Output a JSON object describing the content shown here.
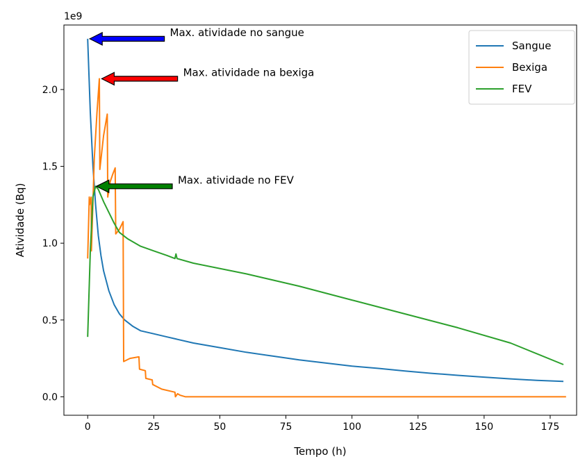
{
  "chart_data": {
    "type": "line",
    "offset_text": "1e9",
    "xlabel": "Tempo (h)",
    "ylabel": "Atividade (Bq)",
    "xlim": [
      -9,
      185
    ],
    "ylim": [
      -0.12,
      2.42
    ],
    "xticks": [
      0,
      25,
      50,
      75,
      100,
      125,
      150,
      175
    ],
    "yticks": [
      0.0,
      0.5,
      1.0,
      1.5,
      2.0
    ],
    "ytick_labels": [
      "0.0",
      "0.5",
      "1.0",
      "1.5",
      "2.0"
    ],
    "legend_position": "top-right",
    "series": [
      {
        "name": "Sangue",
        "color": "#1f77b4",
        "x": [
          0,
          1,
          2,
          3,
          4,
          5,
          6,
          8,
          10,
          12,
          14,
          17,
          20,
          25,
          30,
          40,
          50,
          60,
          70,
          80,
          90,
          100,
          110,
          120,
          130,
          140,
          150,
          160,
          170,
          180
        ],
        "y": [
          2.33,
          1.85,
          1.5,
          1.25,
          1.05,
          0.92,
          0.82,
          0.69,
          0.6,
          0.54,
          0.5,
          0.46,
          0.43,
          0.41,
          0.39,
          0.35,
          0.32,
          0.29,
          0.265,
          0.24,
          0.22,
          0.2,
          0.185,
          0.168,
          0.153,
          0.14,
          0.128,
          0.117,
          0.107,
          0.1
        ]
      },
      {
        "name": "Bexiga",
        "color": "#ff7f0e",
        "x": [
          0,
          0.6,
          0.7,
          1.3,
          1.4,
          2.5,
          3.5,
          4.4,
          4.6,
          6,
          7.4,
          7.6,
          8.5,
          9.5,
          10.4,
          10.6,
          12,
          13.4,
          13.6,
          16,
          19.4,
          19.6,
          21.8,
          22,
          24.4,
          24.6,
          28,
          33,
          33.2,
          34,
          35,
          37,
          181
        ],
        "y": [
          0.9,
          1.3,
          1.25,
          1.3,
          0.95,
          1.55,
          1.85,
          2.07,
          1.48,
          1.7,
          1.84,
          1.3,
          1.4,
          1.45,
          1.49,
          1.06,
          1.09,
          1.14,
          0.23,
          0.25,
          0.26,
          0.18,
          0.17,
          0.12,
          0.11,
          0.08,
          0.05,
          0.03,
          0.0,
          0.02,
          0.01,
          0.0,
          0.0
        ]
      },
      {
        "name": "FEV",
        "color": "#2ca02c",
        "x": [
          0,
          1,
          2,
          3,
          4,
          6,
          8,
          10,
          12,
          15,
          20,
          25,
          30,
          33,
          33.4,
          33.8,
          40,
          60,
          80,
          100,
          120,
          140,
          160,
          180
        ],
        "y": [
          0.39,
          0.95,
          1.3,
          1.37,
          1.35,
          1.27,
          1.2,
          1.13,
          1.07,
          1.03,
          0.98,
          0.95,
          0.92,
          0.9,
          0.93,
          0.9,
          0.87,
          0.8,
          0.72,
          0.63,
          0.54,
          0.45,
          0.35,
          0.21
        ]
      }
    ],
    "annotations": [
      {
        "text": "Max. atividade no sangue",
        "arrow_color": "#0000ff",
        "point": [
          0,
          2.33
        ],
        "text_at": [
          29,
          2.33
        ]
      },
      {
        "text": "Max. atividade na bexiga",
        "arrow_color": "#ff0000",
        "point": [
          4.5,
          2.07
        ],
        "text_at": [
          34,
          2.07
        ]
      },
      {
        "text": "Max. atividade no FEV",
        "arrow_color": "#008000",
        "point": [
          2.5,
          1.37
        ],
        "text_at": [
          32,
          1.37
        ]
      }
    ]
  }
}
